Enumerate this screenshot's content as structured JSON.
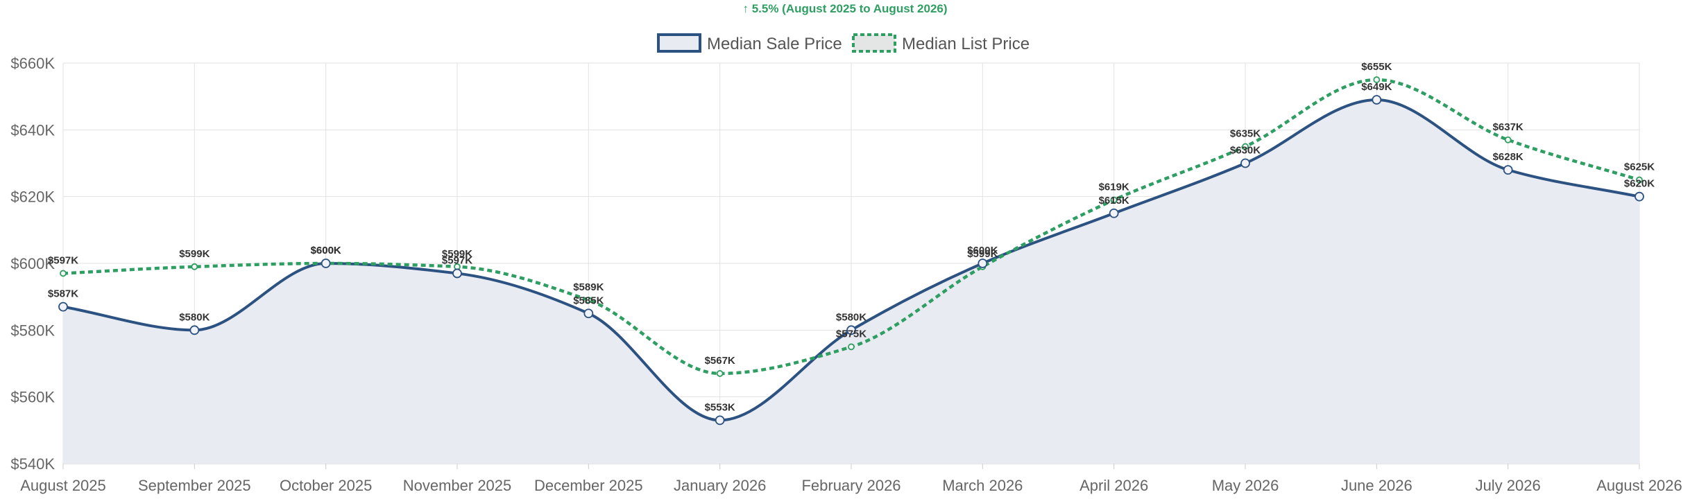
{
  "headline": "↑ 5.5% (August 2025 to August 2026)",
  "colors": {
    "sale_line": "#2c5282",
    "sale_fill": "#e8ebf1",
    "list_line": "#2e9e62",
    "headline": "#2e9e62",
    "grid": "#e2e2e2"
  },
  "chart_data": {
    "type": "line",
    "categories": [
      "August 2025",
      "September 2025",
      "October 2025",
      "November 2025",
      "December 2025",
      "January 2026",
      "February 2026",
      "March 2026",
      "April 2026",
      "May 2026",
      "June 2026",
      "July 2026",
      "August 2026"
    ],
    "series": [
      {
        "name": "Median Sale Price",
        "values": [
          587,
          580,
          600,
          597,
          585,
          553,
          580,
          600,
          615,
          630,
          649,
          628,
          620
        ],
        "labels": [
          "$587K",
          "$580K",
          "$600K",
          "$597K",
          "$585K",
          "$553K",
          "$580K",
          "$600K",
          "$615K",
          "$630K",
          "$649K",
          "$628K",
          "$620K"
        ],
        "style": "solid-filled"
      },
      {
        "name": "Median List Price",
        "values": [
          597,
          599,
          600,
          599,
          589,
          567,
          575,
          599,
          619,
          635,
          655,
          637,
          625
        ],
        "labels": [
          "$597K",
          "$599K",
          "$600K",
          "$599K",
          "$589K",
          "$567K",
          "$575K",
          "$599K",
          "$619K",
          "$635K",
          "$655K",
          "$637K",
          "$625K"
        ],
        "style": "dashed"
      }
    ],
    "y_ticks": [
      540,
      560,
      580,
      600,
      620,
      640,
      660
    ],
    "y_tick_labels": [
      "$540K",
      "$560K",
      "$580K",
      "$600K",
      "$620K",
      "$640K",
      "$660K"
    ],
    "ylim": [
      540,
      660
    ],
    "unit": "K USD",
    "grid": true,
    "legend_position": "top-center"
  }
}
